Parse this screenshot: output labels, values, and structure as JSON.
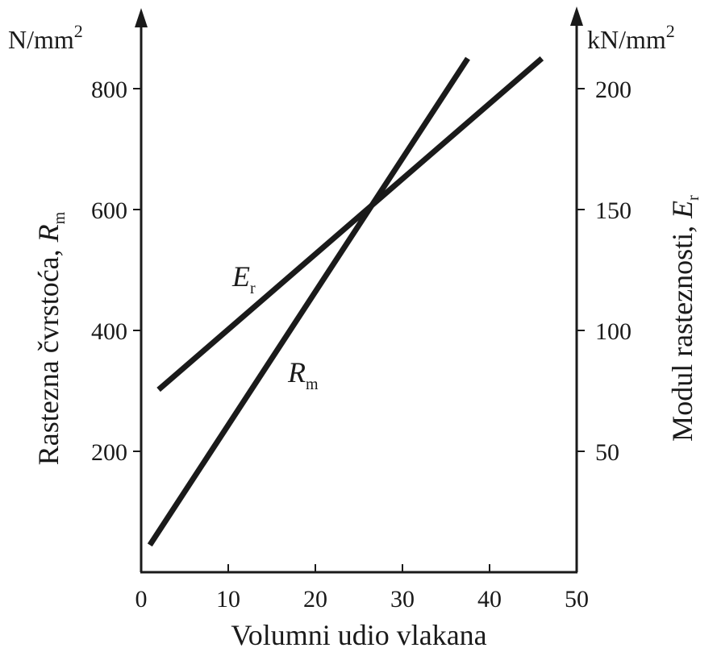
{
  "chart_data": {
    "type": "line",
    "xlabel": "Volumni udio vlakana",
    "x_ticks": [
      "0",
      "10",
      "20",
      "30",
      "40",
      "50"
    ],
    "xlim": [
      0,
      50
    ],
    "left_axis": {
      "unit_base": "N/mm",
      "unit_exp": "2",
      "title_base": "Rastezna čvrstoća, ",
      "title_var": "R",
      "title_sub": "m",
      "ticks": [
        "200",
        "400",
        "600",
        "800"
      ],
      "ylim": [
        0,
        800
      ]
    },
    "right_axis": {
      "unit_base": "kN/mm",
      "unit_exp": "2",
      "title_base": "Modul rasteznosti, ",
      "title_var": "E",
      "title_sub": "r",
      "ticks": [
        "50",
        "100",
        "150",
        "200"
      ],
      "ylim": [
        0,
        200
      ]
    },
    "series": [
      {
        "name": "Rm",
        "label_var": "R",
        "label_sub": "m",
        "axis": "left",
        "x": [
          1,
          37.5
        ],
        "y": [
          45,
          850
        ]
      },
      {
        "name": "Er",
        "label_var": "E",
        "label_sub": "r",
        "axis": "right",
        "x": [
          2,
          46
        ],
        "y": [
          75.5,
          212.5
        ]
      }
    ],
    "grid": false,
    "colors": {
      "line": "#1a1a1a",
      "background": "#ffffff"
    }
  }
}
